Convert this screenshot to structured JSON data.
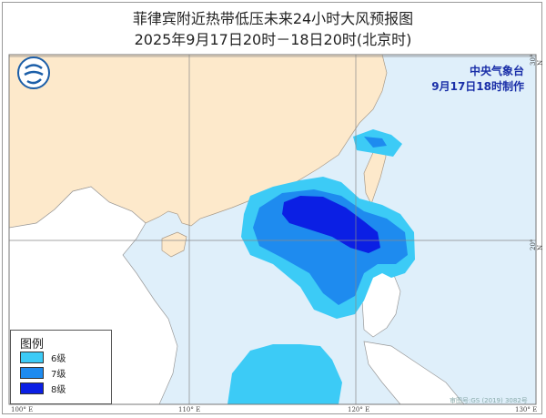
{
  "title": "菲律宾附近热带低压未来24小时大风预报图",
  "subtitle": "2025年9月17日20时－18日20时(北京时)",
  "agency": {
    "name": "中央气象台",
    "issued": "9月17日18时制作",
    "logo_icon": "cma-logo-icon"
  },
  "legend": {
    "title": "图例",
    "items": [
      {
        "label": "6级",
        "color": "#3ccbf6"
      },
      {
        "label": "7级",
        "color": "#1e8bef"
      },
      {
        "label": "8级",
        "color": "#0b1fe4"
      }
    ]
  },
  "axes": {
    "lon_labels": [
      "100° E",
      "110° E",
      "120° E",
      "130° E"
    ],
    "lat_labels": [
      "30° N",
      "20° N"
    ]
  },
  "colors": {
    "land": "#fde9cb",
    "sea": "#dfeffa",
    "other_land": "#ffffff",
    "border": "#a99a88",
    "river": "#5fb8e0"
  },
  "approval": "审图号:GS (2019) 3082号"
}
